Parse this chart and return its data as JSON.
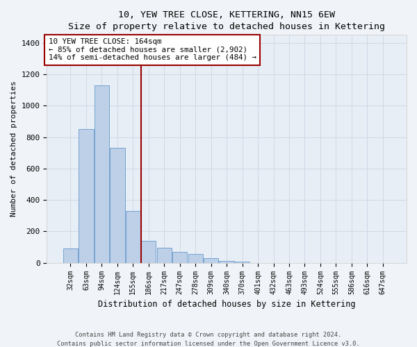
{
  "title": "10, YEW TREE CLOSE, KETTERING, NN15 6EW",
  "subtitle": "Size of property relative to detached houses in Kettering",
  "xlabel": "Distribution of detached houses by size in Kettering",
  "ylabel": "Number of detached properties",
  "categories": [
    "32sqm",
    "63sqm",
    "94sqm",
    "124sqm",
    "155sqm",
    "186sqm",
    "217sqm",
    "247sqm",
    "278sqm",
    "309sqm",
    "340sqm",
    "370sqm",
    "401sqm",
    "432sqm",
    "463sqm",
    "493sqm",
    "524sqm",
    "555sqm",
    "586sqm",
    "616sqm",
    "647sqm"
  ],
  "values": [
    90,
    850,
    1130,
    730,
    330,
    140,
    95,
    70,
    55,
    30,
    10,
    8,
    0,
    0,
    0,
    0,
    0,
    0,
    0,
    0,
    0
  ],
  "bar_color": "#bdd0e8",
  "bar_edge_color": "#6699cc",
  "vline_color": "#990000",
  "annotation_box_text": "10 YEW TREE CLOSE: 164sqm\n← 85% of detached houses are smaller (2,902)\n14% of semi-detached houses are larger (484) →",
  "ylim": [
    0,
    1450
  ],
  "yticks": [
    0,
    200,
    400,
    600,
    800,
    1000,
    1200,
    1400
  ],
  "fig_bg_color": "#f0f4f8",
  "ax_bg_color": "#e8eef5",
  "grid_color": "#d0d8e8",
  "footer_line1": "Contains HM Land Registry data © Crown copyright and database right 2024.",
  "footer_line2": "Contains public sector information licensed under the Open Government Licence v3.0."
}
